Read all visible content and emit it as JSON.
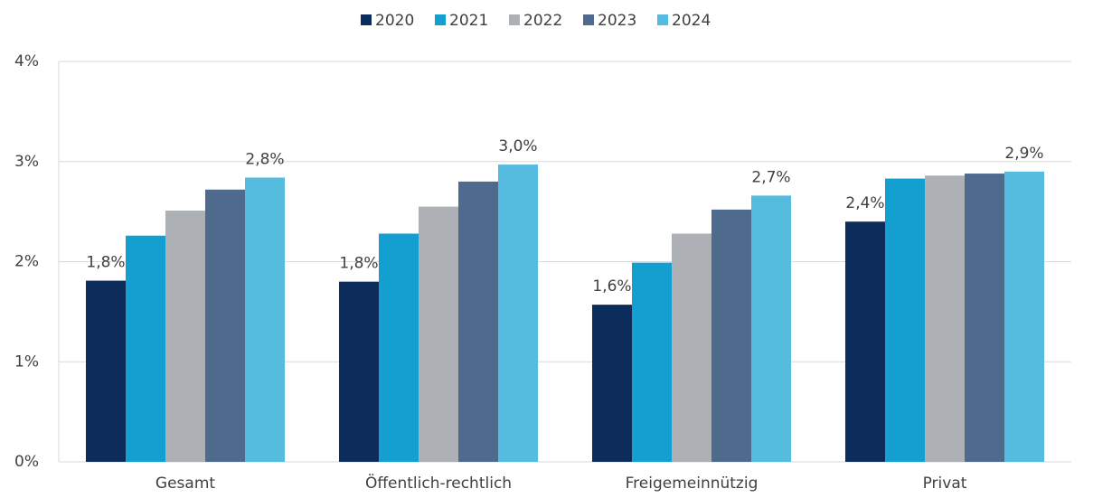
{
  "chart_data": {
    "type": "bar",
    "categories": [
      "Gesamt",
      "Öffentlich-rechtlich",
      "Freigemeinnützig",
      "Privat"
    ],
    "series": [
      {
        "name": "2020",
        "color": "#0c2d5c",
        "values": [
          1.81,
          1.8,
          1.57,
          2.4
        ],
        "value_labels": [
          "1,8%",
          "1,8%",
          "1,6%",
          "2,4%"
        ]
      },
      {
        "name": "2021",
        "color": "#13a0d0",
        "values": [
          2.26,
          2.28,
          1.99,
          2.83
        ]
      },
      {
        "name": "2022",
        "color": "#adb1b5",
        "values": [
          2.51,
          2.55,
          2.28,
          2.86
        ]
      },
      {
        "name": "2023",
        "color": "#4e6a8c",
        "values": [
          2.72,
          2.8,
          2.52,
          2.88
        ]
      },
      {
        "name": "2024",
        "color": "#55bcdf",
        "values": [
          2.84,
          2.97,
          2.66,
          2.9
        ],
        "value_labels": [
          "2,8%",
          "3,0%",
          "2,7%",
          "2,9%"
        ]
      }
    ],
    "ylim": [
      0,
      4
    ],
    "yticks": [
      {
        "value": 0,
        "label": "0%"
      },
      {
        "value": 1,
        "label": "1%"
      },
      {
        "value": 2,
        "label": "2%"
      },
      {
        "value": 3,
        "label": "3%"
      },
      {
        "value": 4,
        "label": "4%"
      }
    ],
    "grid": true,
    "legend": "top"
  }
}
